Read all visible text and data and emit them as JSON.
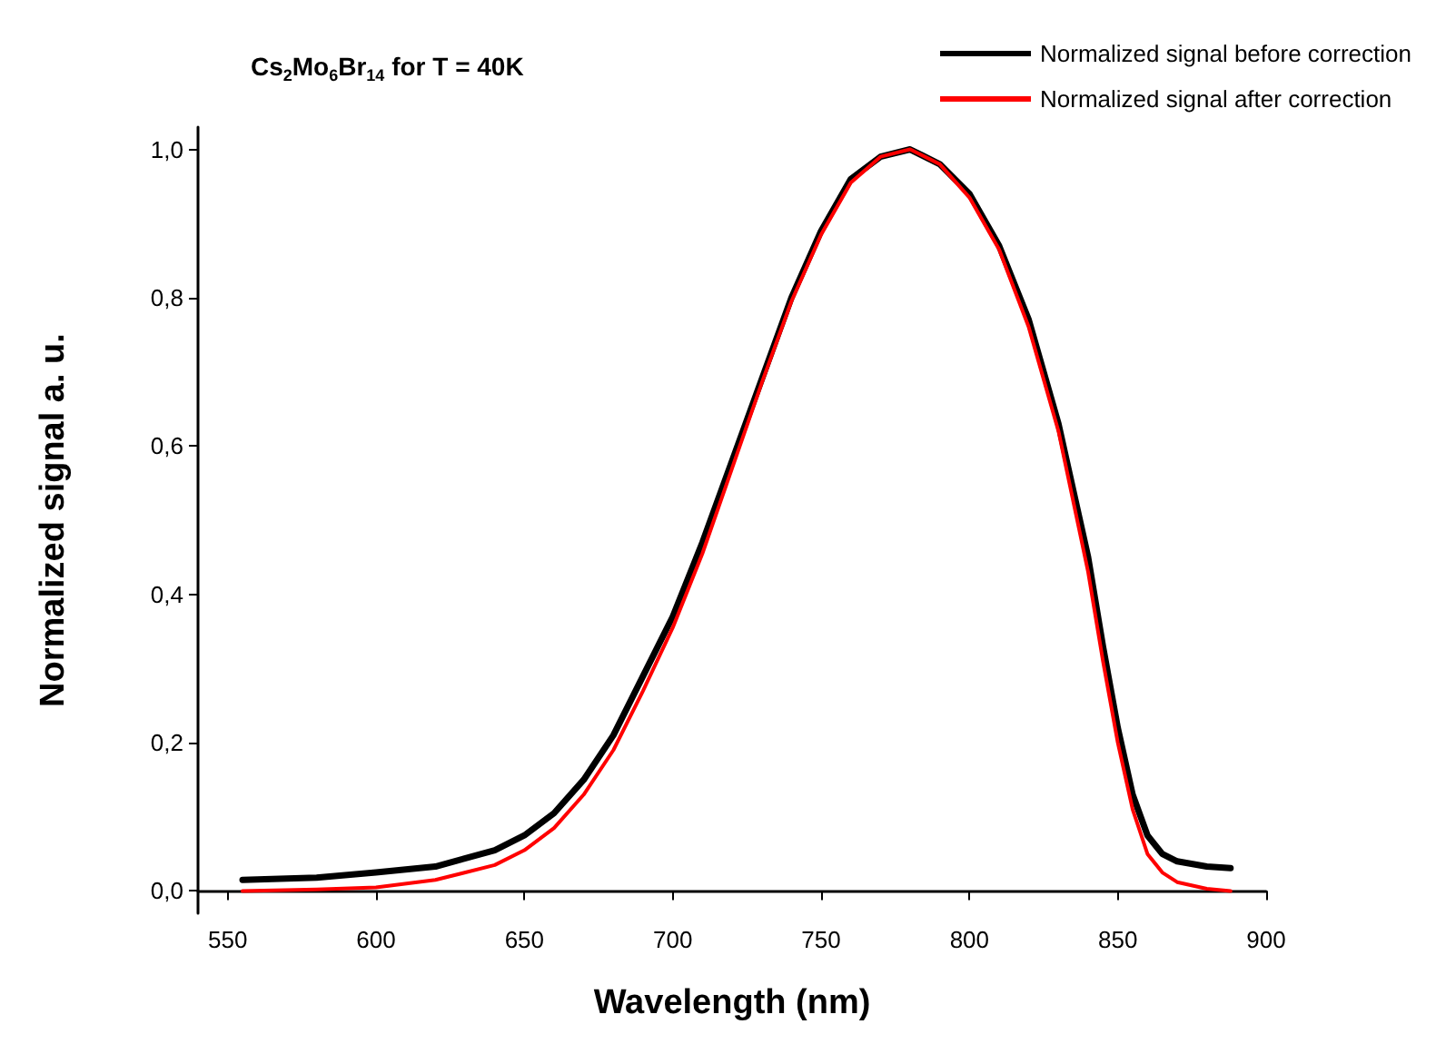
{
  "chart_data": {
    "type": "line",
    "title": "Cs$_{2}$Mo$_{6}$Br$_{14}$ for T = 40K",
    "xlabel": "Wavelength (nm)",
    "ylabel": "Normalized signal a. u.",
    "xlim": [
      540,
      900
    ],
    "xticks": [
      550,
      600,
      650,
      700,
      750,
      800,
      850,
      900
    ],
    "ylim": [
      -0.03,
      1.03
    ],
    "yticks": [
      {
        "value": 0,
        "label": "0,0"
      },
      {
        "value": 0.2,
        "label": "0,2"
      },
      {
        "value": 0.4,
        "label": "0,4"
      },
      {
        "value": 0.6,
        "label": "0,6"
      },
      {
        "value": 0.8,
        "label": "0,8"
      },
      {
        "value": 1,
        "label": "1,0"
      }
    ],
    "grid": false,
    "legend": "top right",
    "marker": "none",
    "line_style": "solid",
    "series": [
      {
        "name": "Normalized signal before correction",
        "color": "#000000",
        "x": [
          555,
          580,
          600,
          620,
          640,
          650,
          660,
          670,
          680,
          690,
          700,
          710,
          720,
          730,
          740,
          750,
          760,
          770,
          780,
          790,
          800,
          810,
          820,
          830,
          840,
          845,
          850,
          855,
          860,
          865,
          870,
          880,
          888
        ],
        "values": [
          0.015,
          0.018,
          0.025,
          0.033,
          0.055,
          0.075,
          0.105,
          0.15,
          0.21,
          0.29,
          0.37,
          0.47,
          0.58,
          0.69,
          0.8,
          0.89,
          0.96,
          0.99,
          1.0,
          0.98,
          0.94,
          0.87,
          0.77,
          0.63,
          0.45,
          0.33,
          0.22,
          0.13,
          0.075,
          0.05,
          0.04,
          0.033,
          0.031
        ]
      },
      {
        "name": "Normalized signal after correction",
        "color": "#ff0000",
        "x": [
          555,
          580,
          600,
          620,
          640,
          650,
          660,
          670,
          680,
          690,
          700,
          710,
          720,
          730,
          740,
          750,
          760,
          770,
          780,
          790,
          800,
          810,
          820,
          830,
          840,
          845,
          850,
          855,
          860,
          865,
          870,
          880,
          888
        ],
        "values": [
          0.0,
          0.002,
          0.005,
          0.015,
          0.035,
          0.055,
          0.085,
          0.13,
          0.19,
          0.27,
          0.355,
          0.455,
          0.57,
          0.685,
          0.795,
          0.885,
          0.955,
          0.99,
          1.0,
          0.98,
          0.935,
          0.865,
          0.76,
          0.62,
          0.43,
          0.31,
          0.2,
          0.11,
          0.05,
          0.025,
          0.012,
          0.003,
          0.0
        ]
      }
    ]
  }
}
